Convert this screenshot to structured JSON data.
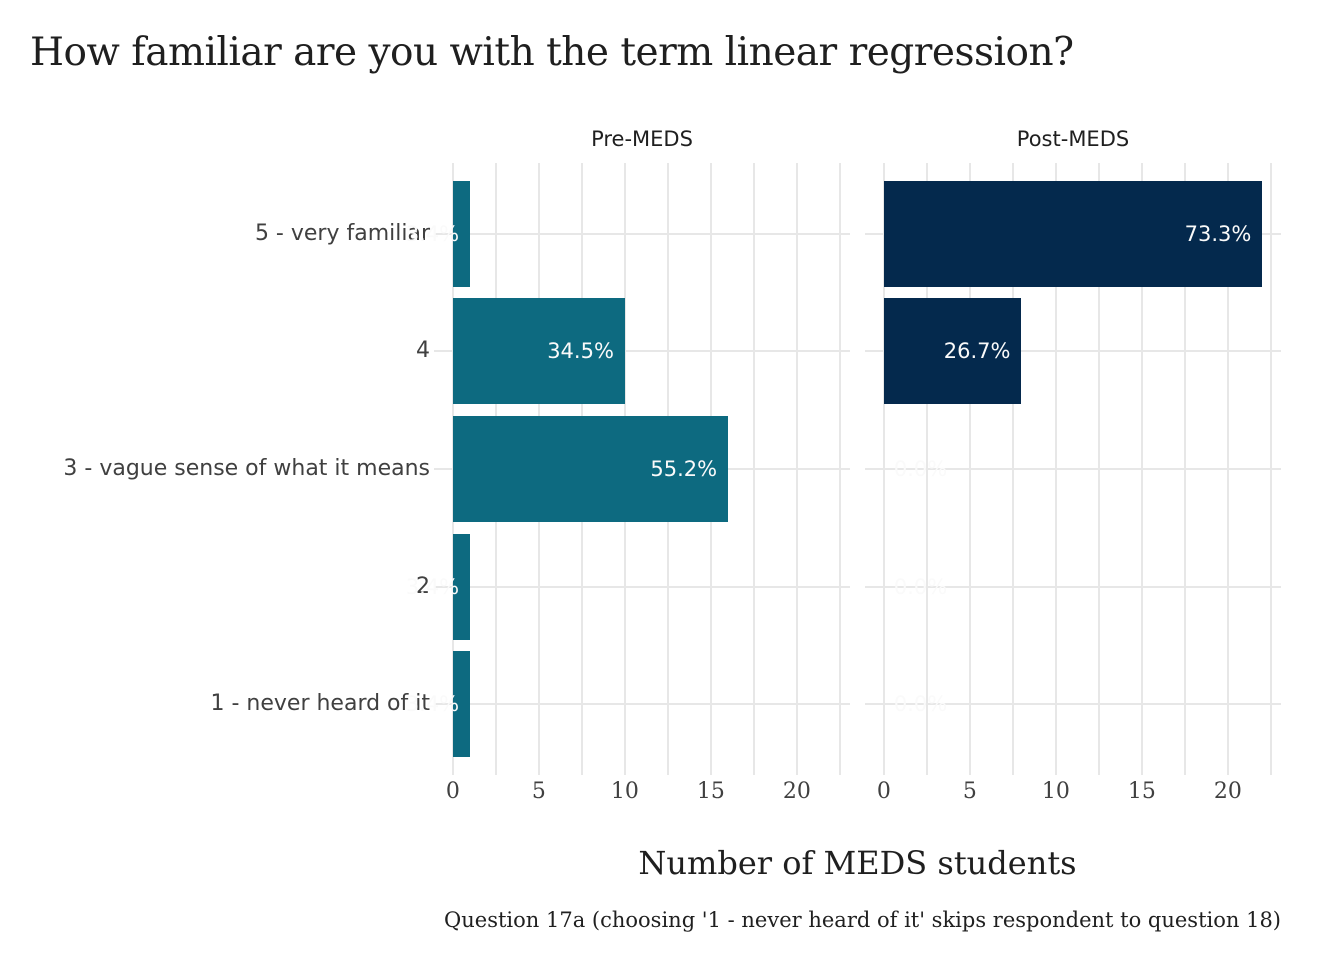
{
  "chart_data": {
    "type": "bar",
    "orientation": "horizontal",
    "title": "How familiar are you with the term linear regression?",
    "xlabel": "Number of MEDS students",
    "caption": "Question 17a (choosing '1 - never heard of it' skips respondent to question 18)",
    "categories": [
      "5 - very familiar",
      "4",
      "3 - vague sense of what it means",
      "2",
      "1 - never heard of it"
    ],
    "x_ticks": [
      0,
      5,
      10,
      15,
      20
    ],
    "xlim": [
      -1.1,
      23.1
    ],
    "grid": true,
    "legend": "none",
    "facets": [
      {
        "label": "Pre-MEDS",
        "bar_color": "#0d6a80",
        "values": [
          1,
          10,
          16,
          1,
          1
        ],
        "bar_labels": [
          "3.4%",
          "34.5%",
          "55.2%",
          "3.4%",
          "3.4%"
        ]
      },
      {
        "label": "Post-MEDS",
        "bar_color": "#04294d",
        "values": [
          22,
          8,
          0,
          0,
          0
        ],
        "bar_labels": [
          "73.3%",
          "26.7%",
          "0.0%",
          "0.0%",
          "0.0%"
        ]
      }
    ],
    "colors": {
      "gridline": "#e7e7e7",
      "axis_text": "#404040",
      "title_text": "#1f1f1f",
      "bar_label_text": "#fafafa",
      "background": "#ffffff"
    }
  }
}
